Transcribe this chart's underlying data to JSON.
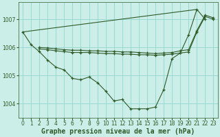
{
  "bg_color": "#cceee8",
  "grid_color": "#99d9d0",
  "line_color": "#2d5a27",
  "xlim": [
    -0.5,
    23.5
  ],
  "ylim": [
    1003.5,
    1007.6
  ],
  "yticks": [
    1004,
    1005,
    1006,
    1007
  ],
  "xticks": [
    0,
    1,
    2,
    3,
    4,
    5,
    6,
    7,
    8,
    9,
    10,
    11,
    12,
    13,
    14,
    15,
    16,
    17,
    18,
    19,
    20,
    21,
    22,
    23
  ],
  "series": [
    {
      "x": [
        0,
        1,
        2,
        3,
        4,
        5,
        6,
        7,
        8,
        9,
        10,
        11,
        12,
        13,
        14,
        15,
        16,
        17,
        18,
        19,
        20,
        21,
        22
      ],
      "y": [
        1006.55,
        1006.1,
        1005.85,
        1005.55,
        1005.3,
        1005.2,
        1004.9,
        1004.85,
        1004.95,
        1004.75,
        1004.45,
        1004.1,
        1004.15,
        1003.82,
        1003.82,
        1003.82,
        1003.88,
        1004.5,
        1005.6,
        1005.8,
        1006.45,
        1007.35,
        1007.0
      ]
    },
    {
      "x": [
        0,
        21
      ],
      "y": [
        1006.55,
        1007.35
      ]
    },
    {
      "x": [
        2,
        3,
        4,
        5,
        6,
        7,
        8,
        9,
        10,
        11,
        12,
        13,
        14,
        15,
        16,
        17,
        18,
        19,
        20,
        21,
        22,
        23
      ],
      "y": [
        1005.95,
        1005.92,
        1005.88,
        1005.85,
        1005.82,
        1005.82,
        1005.82,
        1005.8,
        1005.78,
        1005.78,
        1005.76,
        1005.76,
        1005.74,
        1005.74,
        1005.72,
        1005.74,
        1005.76,
        1005.8,
        1005.84,
        1006.55,
        1007.1,
        1007.0
      ]
    },
    {
      "x": [
        2,
        3,
        4,
        5,
        6,
        7,
        8,
        9,
        10,
        11,
        12,
        13,
        14,
        15,
        16,
        17,
        18,
        19,
        20,
        21,
        22,
        23
      ],
      "y": [
        1006.0,
        1005.98,
        1005.95,
        1005.92,
        1005.9,
        1005.9,
        1005.88,
        1005.88,
        1005.86,
        1005.86,
        1005.84,
        1005.84,
        1005.82,
        1005.8,
        1005.78,
        1005.8,
        1005.82,
        1005.88,
        1005.92,
        1006.6,
        1007.15,
        1007.05
      ]
    }
  ],
  "xlabel": "Graphe pression niveau de la mer (hPa)",
  "tick_fontsize": 5.5,
  "xlabel_fontsize": 7
}
